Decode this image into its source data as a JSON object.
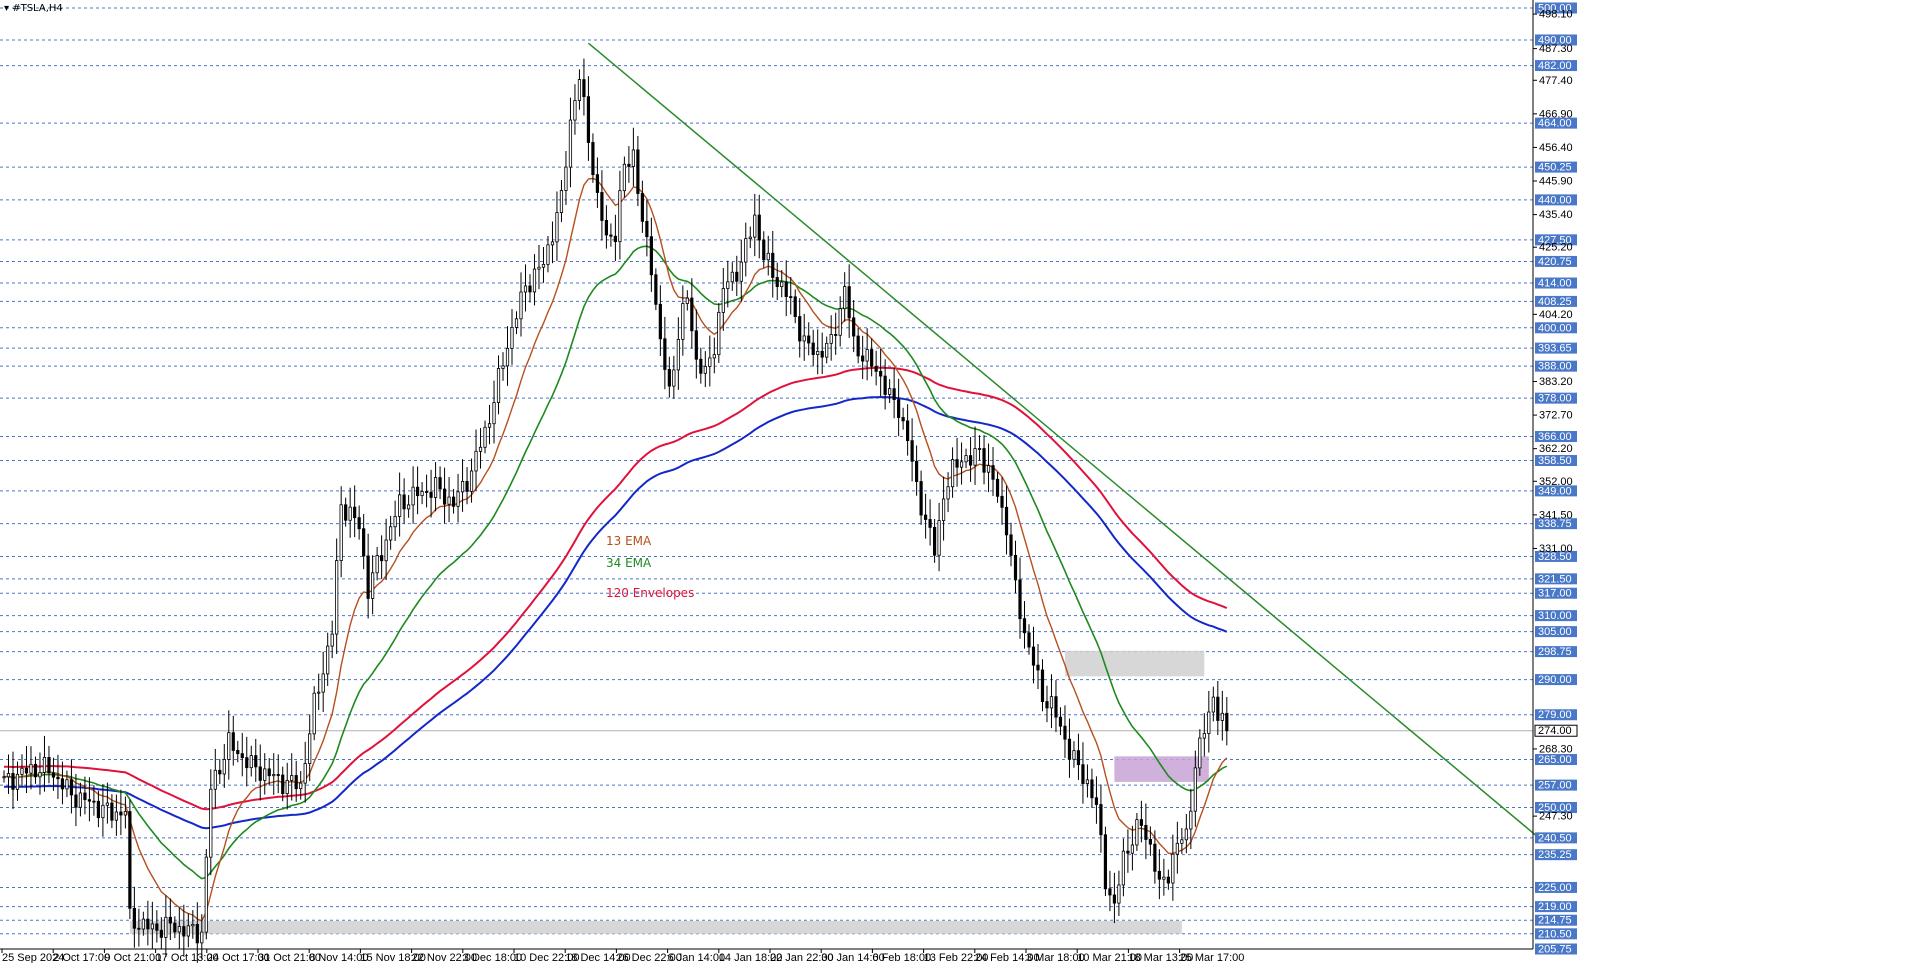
{
  "window": {
    "symbol": "#TSLA,H4",
    "dropdown_icon": "triangle-down-icon"
  },
  "colors": {
    "background": "#ffffff",
    "grid": "#4a78c8",
    "candle": "#000000",
    "ema13": "#b5501e",
    "ema34": "#1e8a1e",
    "env_upper": "#e0123c",
    "env_lower": "#1428c8",
    "trendline": "#2a8a2a",
    "zone_gray": "#d0d0d0",
    "zone_purple": "#c7a3d6",
    "price_box": "#ffffff"
  },
  "annotations": [
    {
      "text": "13 EMA",
      "color": "#b5501e"
    },
    {
      "text": "34 EMA",
      "color": "#1e8a1e"
    },
    {
      "text": "120 Envelopes",
      "color": "#e0123c"
    }
  ],
  "chart_data": {
    "type": "candlestick",
    "symbol": "#TSLA",
    "timeframe": "H4",
    "ylim": [
      205.75,
      500.0
    ],
    "y_levels": [
      500.0,
      490.0,
      482.0,
      464.0,
      450.25,
      440.0,
      427.5,
      420.75,
      414.0,
      408.25,
      400.0,
      393.65,
      388.0,
      378.0,
      366.0,
      358.5,
      349.0,
      338.75,
      328.5,
      321.5,
      317.0,
      310.0,
      305.0,
      298.75,
      290.0,
      279.0,
      265.0,
      257.0,
      250.0,
      240.5,
      235.25,
      225.0,
      219.0,
      214.75,
      210.5,
      205.75
    ],
    "y_ticks": [
      "498.10",
      "487.30",
      "477.40",
      "466.90",
      "456.40",
      "445.90",
      "435.40",
      "425.20",
      "404.20",
      "383.20",
      "372.70",
      "362.20",
      "352.00",
      "341.50",
      "331.00",
      "268.30",
      "247.30"
    ],
    "current_price": "274.00",
    "x_ticks": [
      "25 Sep 2024",
      "2 Oct 17:00",
      "9 Oct 21:00",
      "17 Oct 13:00",
      "24 Oct 17:00",
      "31 Oct 21:00",
      "8 Nov 14:00",
      "15 Nov 18:00",
      "22 Nov 22:00",
      "3 Dec 18:00",
      "10 Dec 22:00",
      "18 Dec 14:00",
      "26 Dec 22:00",
      "6 Jan 14:00",
      "14 Jan 18:00",
      "22 Jan 22:00",
      "30 Jan 14:00",
      "6 Feb 18:00",
      "13 Feb 22:00",
      "24 Feb 14:00",
      "3 Mar 18:00",
      "10 Mar 21:00",
      "18 Mar 13:00",
      "25 Mar 17:00"
    ],
    "close_anchors": [
      [
        0,
        258
      ],
      [
        6,
        262
      ],
      [
        10,
        262
      ],
      [
        15,
        254
      ],
      [
        20,
        251
      ],
      [
        24,
        248
      ],
      [
        27,
        249
      ],
      [
        28,
        215
      ],
      [
        33,
        212
      ],
      [
        37,
        213
      ],
      [
        42,
        211
      ],
      [
        44,
        211
      ],
      [
        46,
        256
      ],
      [
        50,
        270
      ],
      [
        55,
        263
      ],
      [
        62,
        258
      ],
      [
        66,
        257
      ],
      [
        69,
        282
      ],
      [
        73,
        305
      ],
      [
        75,
        345
      ],
      [
        79,
        338
      ],
      [
        81,
        318
      ],
      [
        84,
        330
      ],
      [
        88,
        345
      ],
      [
        92,
        348
      ],
      [
        96,
        350
      ],
      [
        100,
        345
      ],
      [
        104,
        355
      ],
      [
        108,
        372
      ],
      [
        112,
        395
      ],
      [
        116,
        413
      ],
      [
        120,
        420
      ],
      [
        124,
        440
      ],
      [
        126,
        465
      ],
      [
        128,
        478
      ],
      [
        130,
        460
      ],
      [
        132,
        440
      ],
      [
        134,
        428
      ],
      [
        136,
        430
      ],
      [
        138,
        450
      ],
      [
        140,
        455
      ],
      [
        142,
        432
      ],
      [
        144,
        420
      ],
      [
        146,
        395
      ],
      [
        148,
        380
      ],
      [
        150,
        398
      ],
      [
        152,
        410
      ],
      [
        154,
        390
      ],
      [
        156,
        385
      ],
      [
        158,
        395
      ],
      [
        160,
        412
      ],
      [
        164,
        420
      ],
      [
        167,
        435
      ],
      [
        169,
        422
      ],
      [
        172,
        415
      ],
      [
        175,
        408
      ],
      [
        178,
        395
      ],
      [
        181,
        392
      ],
      [
        184,
        395
      ],
      [
        187,
        412
      ],
      [
        189,
        395
      ],
      [
        192,
        390
      ],
      [
        195,
        385
      ],
      [
        197,
        378
      ],
      [
        199,
        375
      ],
      [
        201,
        365
      ],
      [
        203,
        350
      ],
      [
        205,
        340
      ],
      [
        207,
        330
      ],
      [
        209,
        348
      ],
      [
        211,
        355
      ],
      [
        213,
        360
      ],
      [
        215,
        358
      ],
      [
        217,
        362
      ],
      [
        219,
        355
      ],
      [
        221,
        348
      ],
      [
        223,
        338
      ],
      [
        225,
        318
      ],
      [
        227,
        305
      ],
      [
        229,
        295
      ],
      [
        231,
        285
      ],
      [
        233,
        282
      ],
      [
        235,
        275
      ],
      [
        237,
        268
      ],
      [
        239,
        262
      ],
      [
        241,
        258
      ],
      [
        243,
        250
      ],
      [
        245,
        228
      ],
      [
        247,
        218
      ],
      [
        249,
        235
      ],
      [
        251,
        240
      ],
      [
        253,
        245
      ],
      [
        255,
        238
      ],
      [
        257,
        225
      ],
      [
        259,
        230
      ],
      [
        261,
        238
      ],
      [
        263,
        242
      ],
      [
        265,
        262
      ],
      [
        267,
        275
      ],
      [
        269,
        285
      ],
      [
        270,
        278
      ],
      [
        272,
        274
      ]
    ],
    "series": [
      {
        "name": "13 EMA",
        "period": 13
      },
      {
        "name": "34 EMA",
        "period": 34
      },
      {
        "name": "120 Envelopes",
        "period": 120
      }
    ],
    "zones": [
      {
        "from_bar": 28,
        "to_bar": 262,
        "low": 210.5,
        "high": 214.5,
        "color": "gray"
      },
      {
        "from_bar": 236,
        "to_bar": 267,
        "low": 291.0,
        "high": 299.0,
        "color": "gray"
      },
      {
        "from_bar": 247,
        "to_bar": 268,
        "low": 258.0,
        "high": 266.0,
        "color": "purple"
      }
    ],
    "trendline": {
      "from": {
        "bar": 130,
        "price": 489.0
      },
      "to": {
        "bar": 341,
        "price": 241.0
      }
    },
    "grid": true,
    "legend": "inline-text-center"
  }
}
